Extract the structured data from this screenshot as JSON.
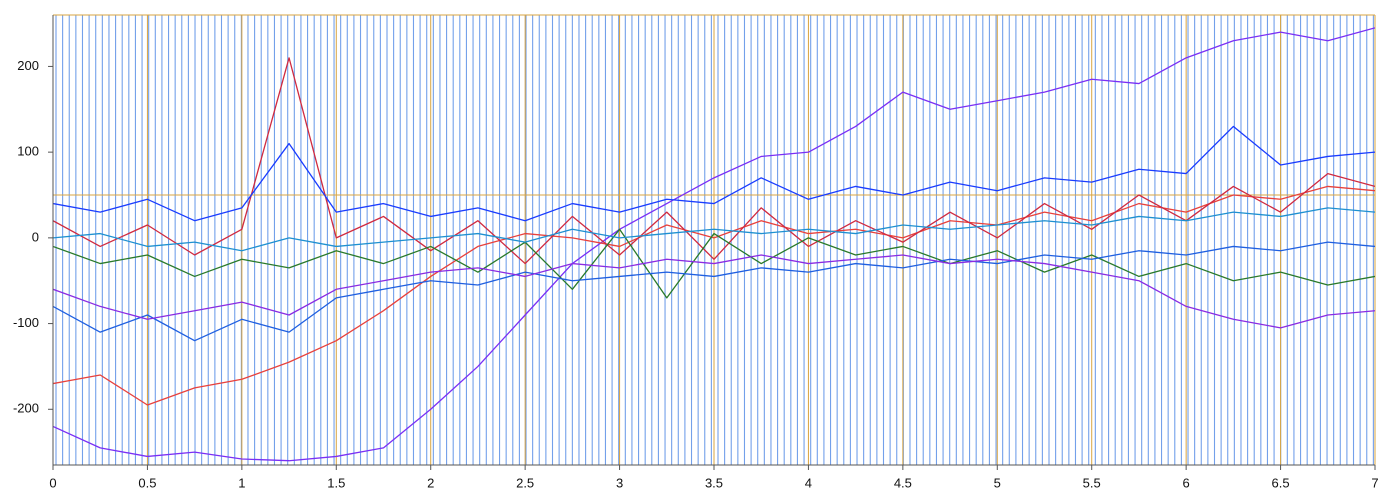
{
  "chart_data": {
    "type": "line",
    "xlim": [
      0,
      7
    ],
    "ylim": [
      -265,
      260
    ],
    "xticks": [
      0,
      0.5,
      1,
      1.5,
      2,
      2.5,
      3,
      3.5,
      4,
      4.5,
      5,
      5.5,
      6,
      6.5,
      7
    ],
    "yticks": [
      -200,
      -100,
      0,
      100,
      200
    ],
    "grid": true,
    "grid_color": "#d9a441",
    "hlines": [
      50
    ],
    "x": [
      0,
      0.25,
      0.5,
      0.75,
      1,
      1.25,
      1.5,
      1.75,
      2,
      2.25,
      2.5,
      2.75,
      3,
      3.25,
      3.5,
      3.75,
      4,
      4.25,
      4.5,
      4.75,
      5,
      5.25,
      5.5,
      5.75,
      6,
      6.25,
      6.5,
      6.75,
      7
    ],
    "series": [
      {
        "color": "#7a2ff5",
        "values": [
          -220,
          -245,
          -255,
          -250,
          -258,
          -260,
          -255,
          -245,
          -200,
          -150,
          -90,
          -30,
          10,
          40,
          70,
          95,
          100,
          130,
          170,
          150,
          160,
          170,
          185,
          180,
          210,
          230,
          240,
          230,
          245
        ]
      },
      {
        "color": "#e8413c",
        "values": [
          -170,
          -160,
          -195,
          -175,
          -165,
          -145,
          -120,
          -85,
          -45,
          -10,
          5,
          0,
          -10,
          15,
          0,
          20,
          5,
          10,
          0,
          20,
          15,
          30,
          20,
          40,
          30,
          50,
          45,
          60,
          55
        ]
      },
      {
        "color": "#d02a40",
        "values": [
          20,
          -10,
          15,
          -20,
          10,
          210,
          0,
          25,
          -15,
          20,
          -30,
          25,
          -20,
          30,
          -25,
          35,
          -10,
          20,
          -5,
          30,
          0,
          40,
          10,
          50,
          20,
          60,
          30,
          75,
          60
        ]
      },
      {
        "color": "#1a3cff",
        "values": [
          40,
          30,
          45,
          20,
          35,
          110,
          30,
          40,
          25,
          35,
          20,
          40,
          30,
          45,
          40,
          70,
          45,
          60,
          50,
          65,
          55,
          70,
          65,
          80,
          75,
          130,
          85,
          95,
          100
        ]
      },
      {
        "color": "#2a7a2a",
        "values": [
          -10,
          -30,
          -20,
          -45,
          -25,
          -35,
          -15,
          -30,
          -10,
          -40,
          -5,
          -60,
          10,
          -70,
          5,
          -30,
          0,
          -20,
          -10,
          -30,
          -15,
          -40,
          -20,
          -45,
          -30,
          -50,
          -40,
          -55,
          -45
        ]
      },
      {
        "color": "#1f5fe0",
        "values": [
          -80,
          -110,
          -90,
          -120,
          -95,
          -110,
          -70,
          -60,
          -50,
          -55,
          -40,
          -50,
          -45,
          -40,
          -45,
          -35,
          -40,
          -30,
          -35,
          -25,
          -30,
          -20,
          -25,
          -15,
          -20,
          -10,
          -15,
          -5,
          -10
        ]
      },
      {
        "color": "#8a2be2",
        "values": [
          -60,
          -80,
          -95,
          -85,
          -75,
          -90,
          -60,
          -50,
          -40,
          -35,
          -45,
          -30,
          -35,
          -25,
          -30,
          -20,
          -30,
          -25,
          -20,
          -30,
          -25,
          -30,
          -40,
          -50,
          -80,
          -95,
          -105,
          -90,
          -85
        ]
      },
      {
        "color": "#1e90d0",
        "values": [
          0,
          5,
          -10,
          -5,
          -15,
          0,
          -10,
          -5,
          0,
          5,
          -5,
          10,
          0,
          5,
          10,
          5,
          10,
          5,
          15,
          10,
          15,
          20,
          15,
          25,
          20,
          30,
          25,
          35,
          30
        ]
      }
    ]
  }
}
